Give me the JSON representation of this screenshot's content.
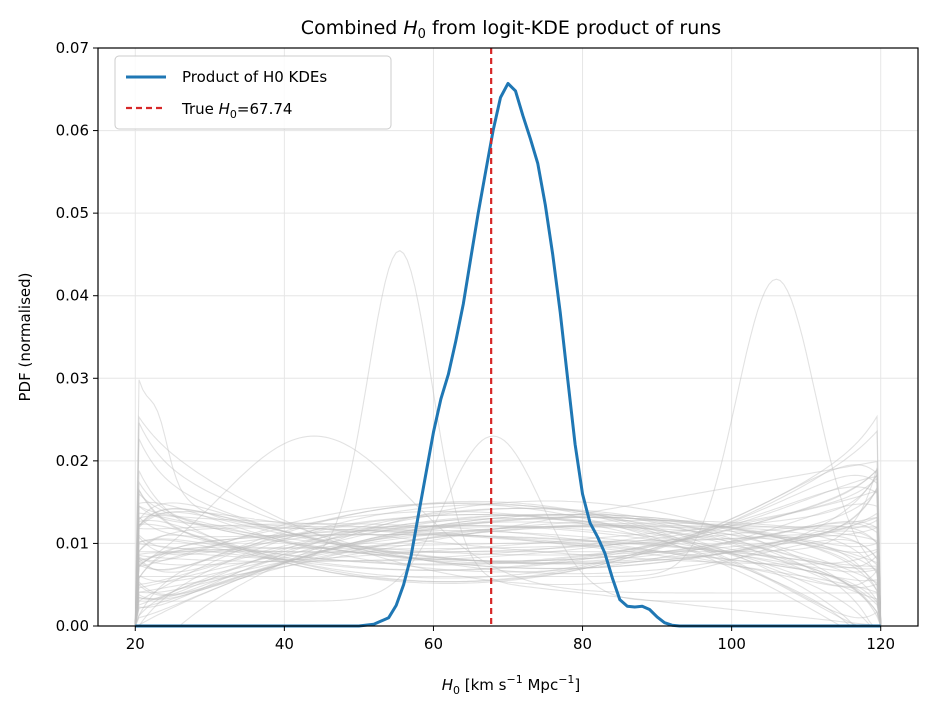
{
  "chart_data": {
    "type": "line",
    "title": "Combined H₀ from logit-KDE product of runs",
    "title_parts": {
      "pre": "Combined ",
      "var": "H",
      "sub": "0",
      "post": " from logit-KDE product of runs"
    },
    "xlabel": "H₀ [km s⁻¹ Mpc⁻¹]",
    "xlabel_parts": {
      "var": "H",
      "sub": "0",
      "a": " [km s",
      "sup1": "−1",
      "b": " Mpc",
      "sup2": "−1",
      "c": "]"
    },
    "ylabel": "PDF (normalised)",
    "xlim": [
      15,
      125
    ],
    "ylim": [
      0,
      0.07
    ],
    "xticks": [
      20,
      40,
      60,
      80,
      100,
      120
    ],
    "yticks": [
      "0.00",
      "0.01",
      "0.02",
      "0.03",
      "0.04",
      "0.05",
      "0.06",
      "0.07"
    ],
    "grid": true,
    "legend_position": "top-left",
    "true_h0": 67.74,
    "colors": {
      "product": "#1f77b4",
      "true_line": "#d62728",
      "runs": "#bfbfbf",
      "grid": "#e6e6e6"
    },
    "series": [
      {
        "name": "Product of H0 KDEs",
        "legend_label": "Product of H0 KDEs",
        "x": [
          20,
          50,
          52,
          54,
          55,
          56,
          57,
          58,
          59,
          60,
          61,
          62,
          63,
          64,
          65,
          66,
          67,
          68,
          69,
          70,
          71,
          72,
          73,
          74,
          75,
          76,
          77,
          78,
          79,
          80,
          81,
          82,
          83,
          84,
          85,
          86,
          87,
          88,
          89,
          90,
          91,
          92,
          93,
          95,
          100,
          110,
          120
        ],
        "y": [
          0,
          0,
          0.0002,
          0.001,
          0.0025,
          0.005,
          0.0085,
          0.0135,
          0.0185,
          0.0235,
          0.0275,
          0.0305,
          0.0345,
          0.039,
          0.0445,
          0.05,
          0.055,
          0.06,
          0.064,
          0.0657,
          0.0648,
          0.0618,
          0.059,
          0.056,
          0.051,
          0.045,
          0.038,
          0.03,
          0.022,
          0.016,
          0.0125,
          0.0108,
          0.0088,
          0.0058,
          0.0032,
          0.0024,
          0.0023,
          0.0024,
          0.002,
          0.0011,
          0.0004,
          0.0001,
          0,
          0,
          0,
          0,
          0
        ]
      }
    ],
    "true_line_label_parts": {
      "pre": "True ",
      "var": "H",
      "sub": "0",
      "post": "=67.74"
    },
    "runs_count": 60
  }
}
